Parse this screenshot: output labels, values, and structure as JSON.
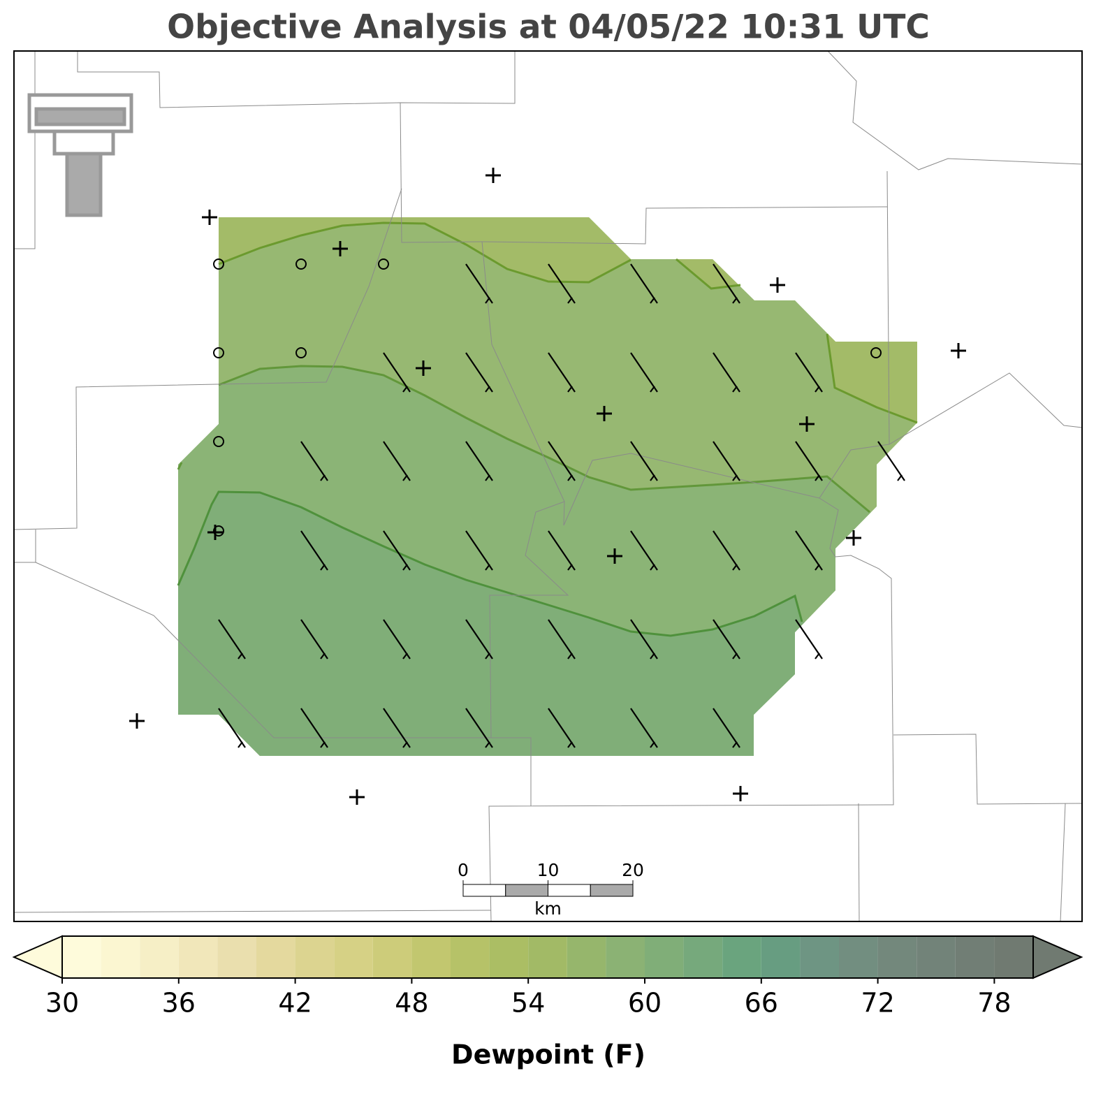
{
  "title": "Objective Analysis at 04/05/22 10:31 UTC",
  "scale_bar": {
    "ticks": [
      0,
      10,
      20
    ],
    "unit": "km"
  },
  "colorbar": {
    "label": "Dewpoint (F)",
    "levels": [
      30,
      32,
      34,
      36,
      38,
      40,
      42,
      44,
      46,
      48,
      50,
      52,
      54,
      56,
      58,
      60,
      62,
      64,
      66,
      68,
      70,
      72,
      74,
      76,
      78,
      80
    ],
    "colors": [
      "#fefbdb",
      "#fbf6d1",
      "#f6efc6",
      "#f1e7ba",
      "#eadfae",
      "#e4d99e",
      "#dcd490",
      "#d6d185",
      "#cdcc7a",
      "#c2c76f",
      "#b6c268",
      "#abbe64",
      "#a2ba66",
      "#96b66c",
      "#8bb274",
      "#80ae78",
      "#76a97c",
      "#6aa47e",
      "#679d81",
      "#6e9583",
      "#728e80",
      "#73887c",
      "#728379",
      "#717e75",
      "#707a71"
    ],
    "ticks": [
      30,
      36,
      42,
      48,
      54,
      60,
      66,
      72,
      78
    ]
  }
}
